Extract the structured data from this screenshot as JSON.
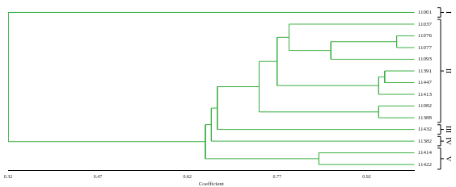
{
  "chart_data": {
    "type": "dendrogram",
    "x_label": "Coefficient",
    "color": "#3cb043",
    "xlim": [
      0.32,
      1.0
    ],
    "xticks": [
      0.32,
      0.47,
      0.62,
      0.77,
      0.92
    ],
    "tree": {
      "height": 0.32,
      "children": [
        "11001",
        {
          "height": 0.65,
          "children": [
            {
              "height": 0.66,
              "children": [
                {
                  "height": 0.67,
                  "children": [
                    {
                      "height": 0.74,
                      "children": [
                        {
                          "height": 0.77,
                          "children": [
                            {
                              "height": 0.79,
                              "children": [
                                "11037",
                                {
                                  "height": 0.86,
                                  "children": [
                                    {
                                      "height": 0.97,
                                      "children": [
                                        "11076",
                                        "11077"
                                      ]
                                    },
                                    "11093"
                                  ]
                                }
                              ]
                            },
                            {
                              "height": 0.94,
                              "children": [
                                {
                                  "height": 0.95,
                                  "children": [
                                    "11391",
                                    "11447"
                                  ]
                                },
                                "11413"
                              ]
                            }
                          ]
                        },
                        {
                          "height": 0.94,
                          "children": [
                            "11082",
                            "11388"
                          ]
                        }
                      ]
                    },
                    "11432"
                  ]
                },
                "11382"
              ]
            },
            {
              "height": 0.84,
              "children": [
                "11414",
                "11422"
              ]
            }
          ]
        }
      ]
    },
    "groups": [
      {
        "label": "I",
        "leaves": [
          "11001"
        ]
      },
      {
        "label": "II",
        "leaves": [
          "11037",
          "11076",
          "11077",
          "11093",
          "11391",
          "11447",
          "11413",
          "11082",
          "11388"
        ]
      },
      {
        "label": "III",
        "leaves": [
          "11432"
        ]
      },
      {
        "label": "IV",
        "leaves": [
          "11382"
        ]
      },
      {
        "label": "V",
        "leaves": [
          "11414",
          "11422"
        ]
      }
    ]
  }
}
